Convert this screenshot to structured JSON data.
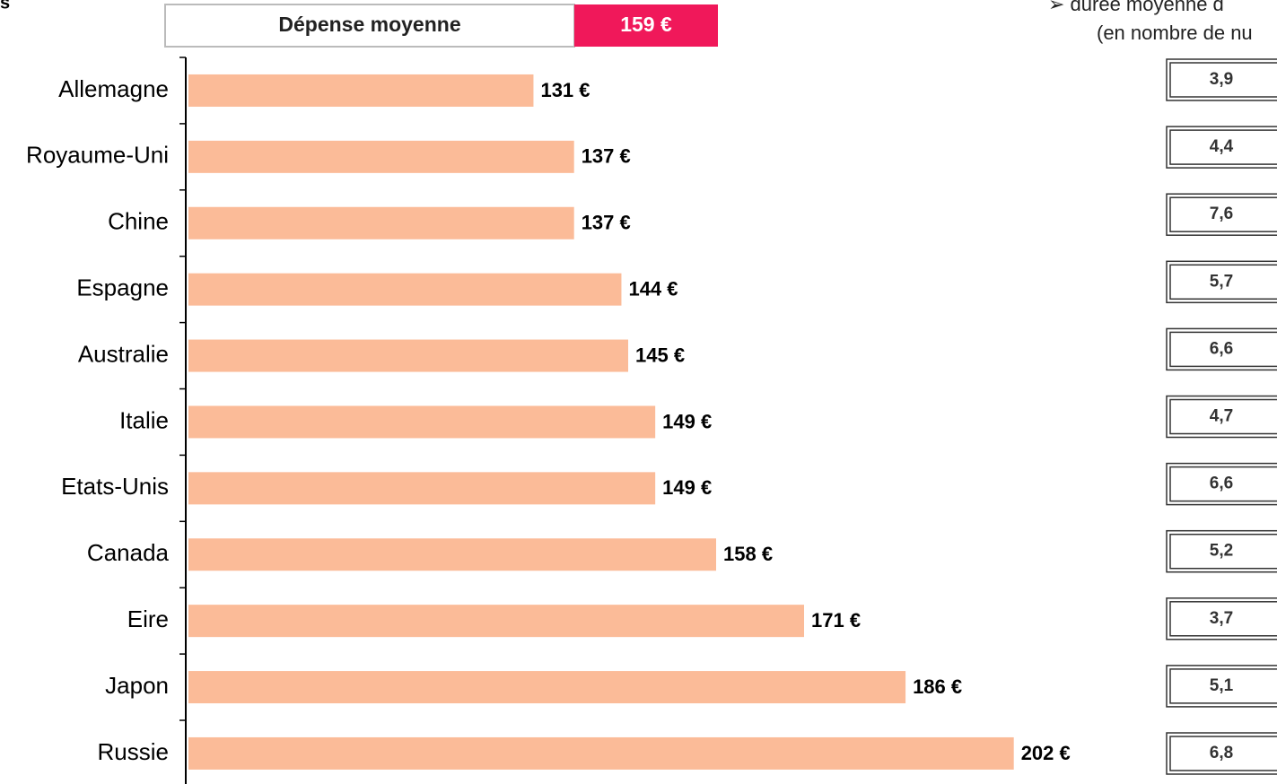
{
  "chart_data": {
    "type": "bar",
    "orientation": "horizontal",
    "corner_title": "s",
    "header": {
      "title": "Dépense moyenne",
      "average": {
        "value": 159,
        "label": "159 €"
      }
    },
    "side_title": [
      "➢ durée moyenne d",
      "(en nombre de nu"
    ],
    "categories": [
      "Allemagne",
      "Royaume-Uni",
      "Chine",
      "Espagne",
      "Australie",
      "Italie",
      "Etats-Unis",
      "Canada",
      "Eire",
      "Japon",
      "Russie"
    ],
    "values": [
      131,
      137,
      137,
      144,
      145,
      149,
      149,
      158,
      171,
      186,
      202
    ],
    "value_labels": [
      "131 €",
      "137 €",
      "137 €",
      "144 €",
      "145 €",
      "149 €",
      "149 €",
      "158 €",
      "171 €",
      "186 €",
      "202 €"
    ],
    "color": "#fbbb98",
    "xlim": [
      80,
      210
    ],
    "nights": {
      "values": [
        3.9,
        4.4,
        7.6,
        5.7,
        6.6,
        4.7,
        6.6,
        5.2,
        3.7,
        5.1,
        6.8
      ],
      "value_labels": [
        "3,9",
        "4,4",
        "7,6",
        "5,7",
        "6,6",
        "4,7",
        "6,6",
        "5,2",
        "3,7",
        "5,1",
        "6,8"
      ]
    }
  }
}
